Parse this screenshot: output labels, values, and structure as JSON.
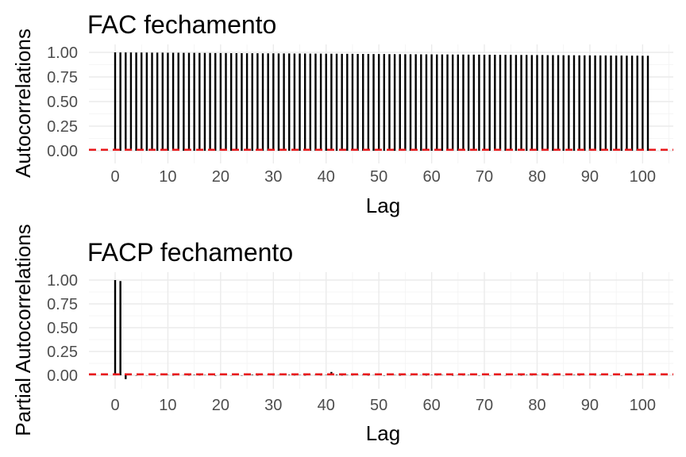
{
  "colors": {
    "bars": "#000000",
    "confidence_line": "#e8191c",
    "grid": "#ebebeb",
    "tick_text": "#4d4d4d"
  },
  "chart_data": [
    {
      "type": "bar",
      "title": "FAC fechamento",
      "xlabel": "Lag",
      "ylabel": "Autocorrelations",
      "xlim": [
        0,
        101
      ],
      "ylim": [
        0,
        1
      ],
      "x_ticks": [
        0,
        10,
        20,
        30,
        40,
        50,
        60,
        70,
        80,
        90,
        100
      ],
      "x_tick_labels": [
        "0",
        "10",
        "20",
        "30",
        "40",
        "50",
        "60",
        "70",
        "80",
        "90",
        "100"
      ],
      "y_ticks": [
        0,
        0.25,
        0.5,
        0.75,
        1
      ],
      "y_tick_labels": [
        "0.00",
        "0.25",
        "0.50",
        "0.75",
        "1.00"
      ],
      "reference_line": 0.01,
      "grid": true,
      "lags": [
        0,
        1,
        2,
        3,
        4,
        5,
        6,
        7,
        8,
        9,
        10,
        11,
        12,
        13,
        14,
        15,
        16,
        17,
        18,
        19,
        20,
        21,
        22,
        23,
        24,
        25,
        26,
        27,
        28,
        29,
        30,
        31,
        32,
        33,
        34,
        35,
        36,
        37,
        38,
        39,
        40,
        41,
        42,
        43,
        44,
        45,
        46,
        47,
        48,
        49,
        50,
        51,
        52,
        53,
        54,
        55,
        56,
        57,
        58,
        59,
        60,
        61,
        62,
        63,
        64,
        65,
        66,
        67,
        68,
        69,
        70,
        71,
        72,
        73,
        74,
        75,
        76,
        77,
        78,
        79,
        80,
        81,
        82,
        83,
        84,
        85,
        86,
        87,
        88,
        89,
        90,
        91,
        92,
        93,
        94,
        95,
        96,
        97,
        98,
        99,
        100,
        101
      ],
      "values": [
        1.0,
        0.999,
        0.999,
        0.999,
        0.998,
        0.998,
        0.998,
        0.997,
        0.997,
        0.997,
        0.996,
        0.996,
        0.996,
        0.995,
        0.995,
        0.995,
        0.994,
        0.994,
        0.994,
        0.993,
        0.993,
        0.993,
        0.992,
        0.992,
        0.992,
        0.991,
        0.991,
        0.991,
        0.99,
        0.99,
        0.99,
        0.989,
        0.989,
        0.989,
        0.988,
        0.988,
        0.988,
        0.987,
        0.987,
        0.987,
        0.986,
        0.986,
        0.986,
        0.985,
        0.985,
        0.985,
        0.984,
        0.984,
        0.984,
        0.983,
        0.983,
        0.983,
        0.982,
        0.982,
        0.982,
        0.981,
        0.981,
        0.981,
        0.98,
        0.98,
        0.98,
        0.979,
        0.979,
        0.979,
        0.978,
        0.978,
        0.978,
        0.977,
        0.977,
        0.977,
        0.976,
        0.976,
        0.976,
        0.975,
        0.975,
        0.975,
        0.974,
        0.974,
        0.974,
        0.973,
        0.973,
        0.973,
        0.972,
        0.972,
        0.972,
        0.971,
        0.971,
        0.971,
        0.97,
        0.97,
        0.97,
        0.969,
        0.969,
        0.969,
        0.968,
        0.968,
        0.968,
        0.967,
        0.967,
        0.967,
        0.966,
        0.966
      ]
    },
    {
      "type": "bar",
      "title": "FACP fechamento",
      "xlabel": "Lag",
      "ylabel": "Partial Autocorrelations",
      "xlim": [
        0,
        101
      ],
      "ylim": [
        0,
        1
      ],
      "x_ticks": [
        0,
        10,
        20,
        30,
        40,
        50,
        60,
        70,
        80,
        90,
        100
      ],
      "x_tick_labels": [
        "0",
        "10",
        "20",
        "30",
        "40",
        "50",
        "60",
        "70",
        "80",
        "90",
        "100"
      ],
      "y_ticks": [
        0,
        0.25,
        0.5,
        0.75,
        1
      ],
      "y_tick_labels": [
        "0.00",
        "0.25",
        "0.50",
        "0.75",
        "1.00"
      ],
      "reference_line": 0.01,
      "grid": true,
      "lags": [
        0,
        1,
        2,
        3,
        4,
        5,
        6,
        7,
        8,
        9,
        10,
        11,
        12,
        13,
        14,
        15,
        16,
        17,
        18,
        19,
        20,
        21,
        22,
        23,
        24,
        25,
        26,
        27,
        28,
        29,
        30,
        31,
        32,
        33,
        34,
        35,
        36,
        37,
        38,
        39,
        40,
        41,
        42,
        43,
        44,
        45,
        46,
        47,
        48,
        49,
        50,
        51,
        52,
        53,
        54,
        55,
        56,
        57,
        58,
        59,
        60,
        61,
        62,
        63,
        64,
        65,
        66,
        67,
        68,
        69,
        70,
        71,
        72,
        73,
        74,
        75,
        76,
        77,
        78,
        79,
        80,
        81,
        82,
        83,
        84,
        85,
        86,
        87,
        88,
        89,
        90,
        91,
        92,
        93,
        94,
        95,
        96,
        97,
        98,
        99,
        100,
        101
      ],
      "values": [
        1.0,
        0.99,
        -0.04,
        0.005,
        -0.003,
        0.004,
        -0.002,
        0.003,
        -0.004,
        0.002,
        0.003,
        -0.003,
        0.008,
        0.002,
        -0.003,
        0.004,
        -0.002,
        0.003,
        0.002,
        -0.004,
        0.006,
        0.003,
        -0.002,
        0.004,
        -0.003,
        0.002,
        0.005,
        -0.003,
        0.002,
        0.004,
        -0.002,
        0.003,
        0.006,
        0.005,
        -0.002,
        0.003,
        -0.003,
        0.002,
        0.004,
        -0.002,
        0.003,
        0.035,
        0.006,
        -0.003,
        0.004,
        -0.002,
        0.003,
        0.005,
        -0.003,
        0.002,
        0.004,
        -0.003,
        0.002,
        0.003,
        -0.004,
        0.005,
        -0.002,
        0.003,
        0.002,
        -0.003,
        0.004,
        -0.002,
        0.003,
        0.002,
        -0.004,
        0.003,
        -0.002,
        0.004,
        0.002,
        -0.003,
        0.003,
        -0.002,
        0.004,
        0.003,
        -0.002,
        0.002,
        0.003,
        -0.003,
        0.004,
        -0.002,
        0.003,
        0.002,
        -0.003,
        0.004,
        0.005,
        -0.002,
        0.003,
        0.004,
        -0.003,
        0.002,
        0.003,
        -0.002,
        0.004,
        0.003,
        -0.002,
        0.003,
        -0.003,
        0.002,
        0.004,
        -0.002,
        0.003,
        0.002
      ]
    }
  ]
}
